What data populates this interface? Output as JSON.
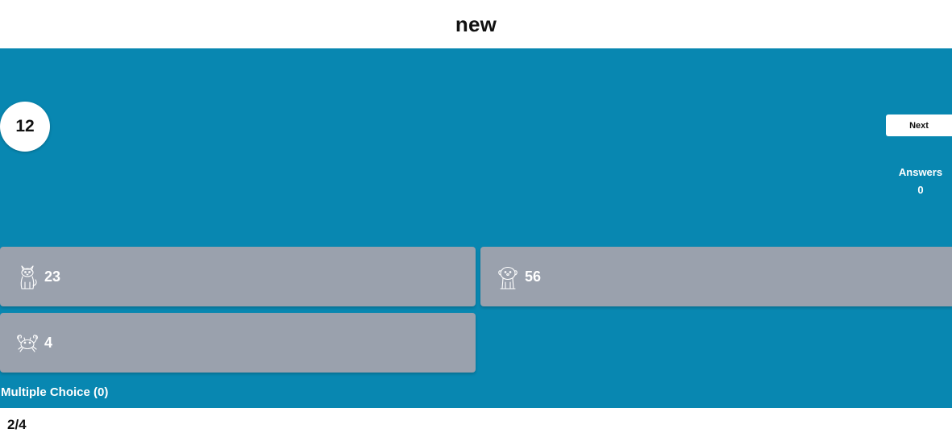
{
  "header": {
    "title": "new"
  },
  "question": {
    "timer": "12",
    "type_label": "Multiple Choice (0)"
  },
  "controls": {
    "next_label": "Next",
    "answers_label": "Answers",
    "answers_count": "0"
  },
  "answers": [
    {
      "label": "23",
      "icon": "cat-icon"
    },
    {
      "label": "56",
      "icon": "dog-icon"
    },
    {
      "label": "4",
      "icon": "crab-icon"
    }
  ],
  "footer": {
    "progress": "2/4"
  },
  "colors": {
    "stage": "#0887b1",
    "card": "#9aa1ad",
    "text_light": "#ffffff",
    "text_dark": "#111111"
  }
}
